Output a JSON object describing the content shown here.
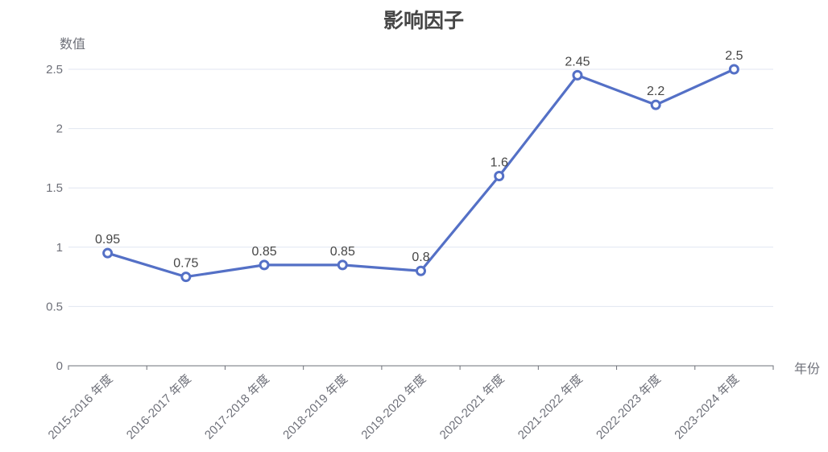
{
  "chart_data": {
    "type": "line",
    "title": "影响因子",
    "xlabel": "年份",
    "ylabel": "数值",
    "categories": [
      "2015-2016 年度",
      "2016-2017 年度",
      "2017-2018 年度",
      "2018-2019 年度",
      "2019-2020 年度",
      "2020-2021 年度",
      "2021-2022 年度",
      "2022-2023 年度",
      "2023-2024 年度"
    ],
    "values": [
      0.95,
      0.75,
      0.85,
      0.85,
      0.8,
      1.6,
      2.45,
      2.2,
      2.5
    ],
    "yticks": [
      0,
      0.5,
      1,
      1.5,
      2,
      2.5
    ],
    "ylim": [
      0,
      2.5
    ],
    "grid": true,
    "legend_position": "none",
    "marker": "circle-hollow",
    "label_position": "top",
    "x_label_rotation": 45,
    "colors": {
      "line": "#5470c6",
      "marker_fill": "#ffffff",
      "gridline": "#e0e6f1",
      "axis": "#6e7079",
      "tick_text": "#6e7079",
      "label_text": "#464646",
      "title_text": "#464646"
    }
  }
}
